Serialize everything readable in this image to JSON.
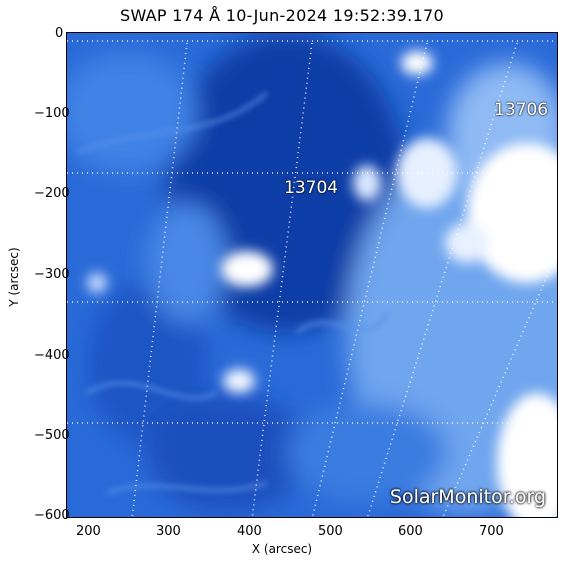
{
  "title": "SWAP 174 Å 10-Jun-2024 19:52:39.170",
  "axes": {
    "xlabel": "X (arcsec)",
    "ylabel": "Y (arcsec)",
    "x_ticks": [
      "200",
      "300",
      "400",
      "500",
      "600",
      "700"
    ],
    "y_ticks": [
      "0",
      "−100",
      "−200",
      "−300",
      "−400",
      "−500",
      "−600"
    ]
  },
  "active_regions": [
    "13704",
    "13706"
  ],
  "watermark": "SolarMonitor.org",
  "colors": {
    "deep_blue": "#0a3da8",
    "mid_blue": "#2f74e0",
    "light_blue": "#9ec4f6",
    "bright": "#ffffff"
  }
}
